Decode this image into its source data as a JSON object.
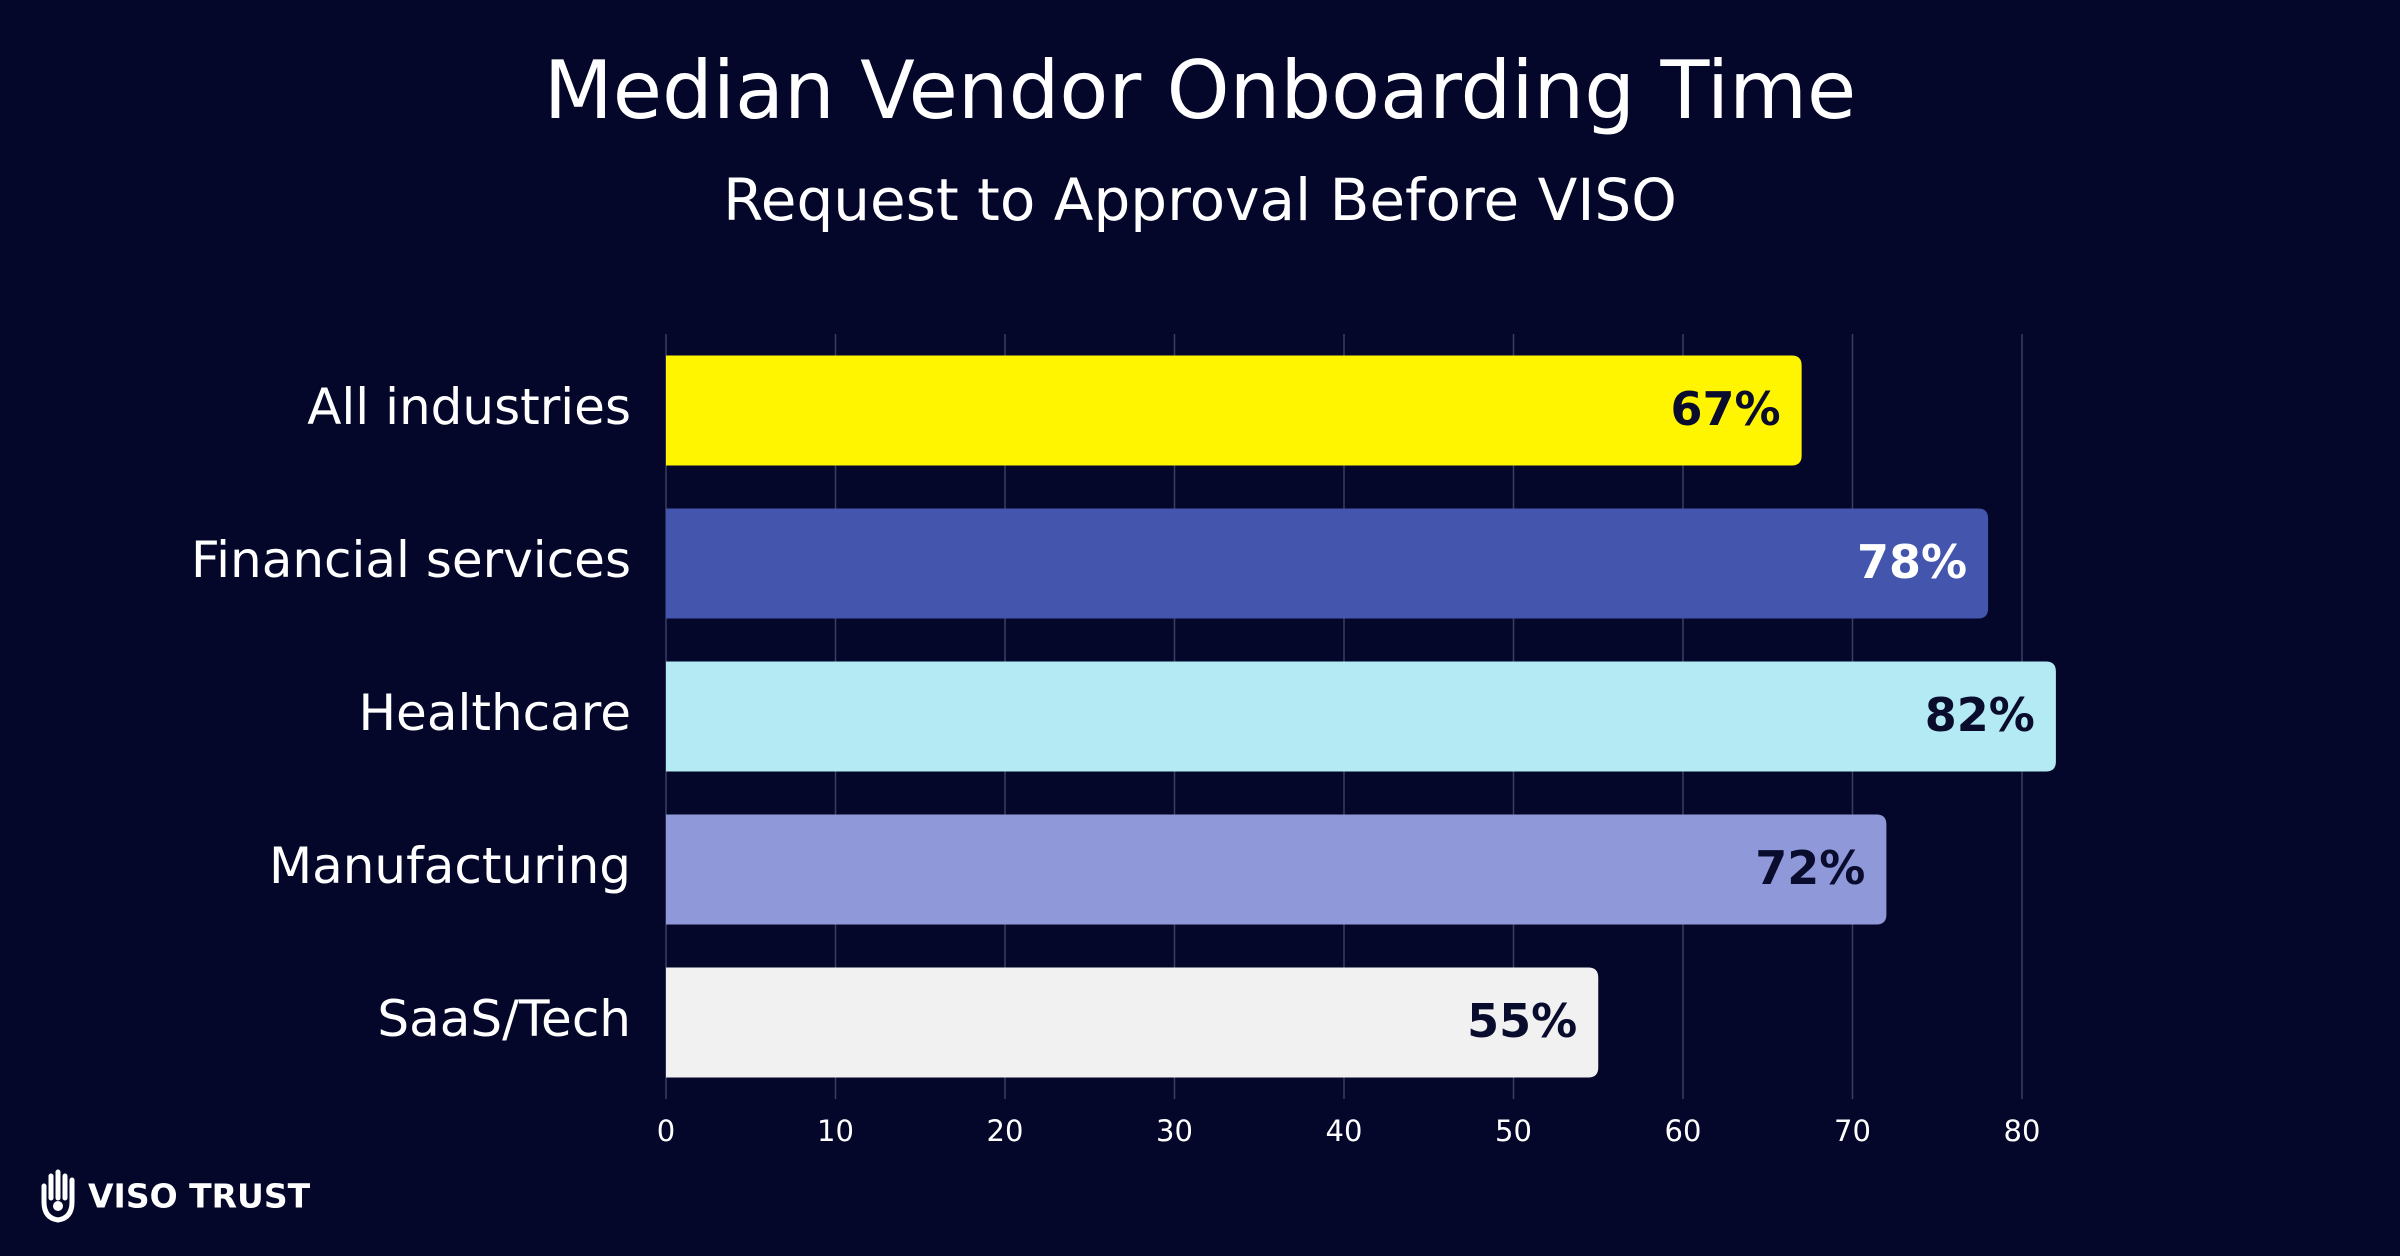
{
  "chart_data": {
    "type": "bar",
    "orientation": "horizontal",
    "title": "Median Vendor Onboarding Time",
    "subtitle": "Request to Approval Before VISO",
    "categories": [
      "All industries",
      "Financial services",
      "Healthcare",
      "Manufacturing",
      "SaaS/Tech"
    ],
    "values": [
      67,
      78,
      82,
      72,
      55
    ],
    "value_labels": [
      "67%",
      "78%",
      "82%",
      "72%",
      "55%"
    ],
    "colors": [
      "#fff500",
      "#4355ad",
      "#b3eaf3",
      "#8f98d9",
      "#f1f1f1"
    ],
    "xlim": [
      0,
      85
    ],
    "xticks": [
      0,
      10,
      20,
      30,
      40,
      50,
      60,
      70,
      80
    ],
    "grid": true
  },
  "brand": "VISO TRUST"
}
